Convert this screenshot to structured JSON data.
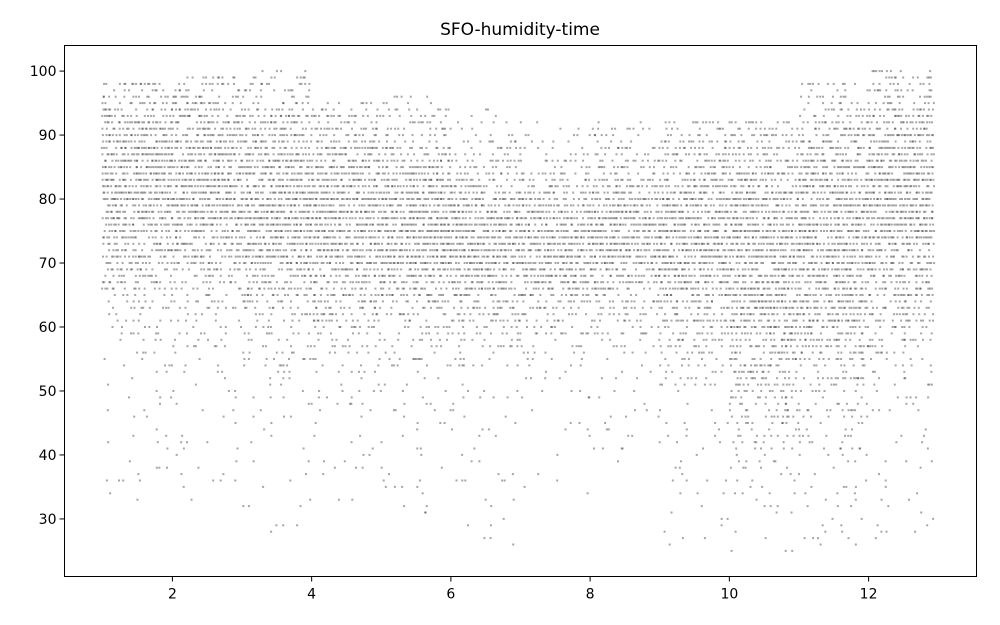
{
  "chart_data": {
    "type": "scatter",
    "title": "SFO-humidity-time",
    "xlabel": "",
    "ylabel": "",
    "xlim": [
      0.45,
      13.55
    ],
    "ylim": [
      21.0,
      104.0
    ],
    "xticks": [
      2,
      4,
      6,
      8,
      10,
      12
    ],
    "yticks": [
      30,
      40,
      50,
      60,
      70,
      80,
      90,
      100
    ],
    "grid": false,
    "legend": "none",
    "marker_color": "#000000",
    "marker_alpha": 0.35,
    "series": [
      {
        "x_range": [
          1.0,
          12.95
        ],
        "y_step": 1,
        "month_profile": [
          {
            "month": 1,
            "y_min": 33,
            "y_max": 98,
            "center": 83,
            "spread": 11
          },
          {
            "month": 2,
            "y_min": 33,
            "y_max": 99,
            "center": 82,
            "spread": 11
          },
          {
            "month": 3,
            "y_min": 28,
            "y_max": 100,
            "center": 80,
            "spread": 12
          },
          {
            "month": 4,
            "y_min": 32,
            "y_max": 95,
            "center": 78,
            "spread": 11
          },
          {
            "month": 5,
            "y_min": 31,
            "y_max": 96,
            "center": 76,
            "spread": 10
          },
          {
            "month": 6,
            "y_min": 26,
            "y_max": 94,
            "center": 74,
            "spread": 9
          },
          {
            "month": 7,
            "y_min": 34,
            "y_max": 93,
            "center": 74,
            "spread": 8
          },
          {
            "month": 8,
            "y_min": 39,
            "y_max": 92,
            "center": 75,
            "spread": 8
          },
          {
            "month": 9,
            "y_min": 26,
            "y_max": 92,
            "center": 75,
            "spread": 11
          },
          {
            "month": 10,
            "y_min": 25,
            "y_max": 92,
            "center": 72,
            "spread": 15
          },
          {
            "month": 11,
            "y_min": 26,
            "y_max": 98,
            "center": 75,
            "spread": 15
          },
          {
            "month": 12,
            "y_min": 27,
            "y_max": 100,
            "center": 80,
            "spread": 13
          }
        ]
      }
    ]
  }
}
